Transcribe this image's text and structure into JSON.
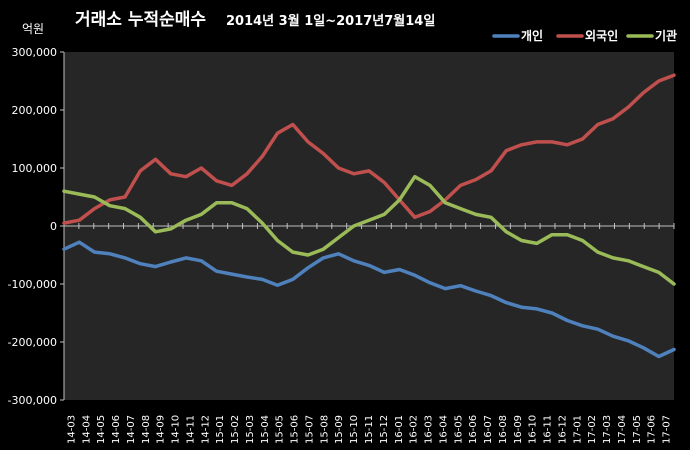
{
  "chart_data": {
    "type": "line",
    "title": "거래소 누적순매수",
    "subtitle": "2014년 3월 1일~2017년7월14일",
    "ylabel": "억원",
    "xlabel": "",
    "ylim": [
      -300000,
      300000
    ],
    "yticks": [
      300000,
      200000,
      100000,
      0,
      -100000,
      -200000,
      -300000
    ],
    "ytick_labels": [
      "300,000",
      "200,000",
      "100,000",
      "0",
      "-100,000",
      "-200,000",
      "-300,000"
    ],
    "categories": [
      "14-03",
      "14-04",
      "14-05",
      "14-06",
      "14-07",
      "14-08",
      "14-09",
      "14-10",
      "14-11",
      "14-12",
      "15-01",
      "15-02",
      "15-03",
      "15-04",
      "15-05",
      "15-06",
      "15-07",
      "15-08",
      "15-09",
      "15-10",
      "15-11",
      "15-12",
      "16-01",
      "16-02",
      "16-03",
      "16-04",
      "16-05",
      "16-06",
      "16-07",
      "16-08",
      "16-09",
      "16-10",
      "16-11",
      "16-12",
      "17-01",
      "17-02",
      "17-03",
      "17-04",
      "17-05",
      "17-06",
      "17-07"
    ],
    "grid": false,
    "legend_position": "top-right",
    "series": [
      {
        "name": "개인",
        "color": "#4f81bd",
        "values": [
          -40000,
          -28000,
          -45000,
          -48000,
          -55000,
          -65000,
          -70000,
          -62000,
          -55000,
          -60000,
          -78000,
          -83000,
          -88000,
          -92000,
          -102000,
          -92000,
          -72000,
          -55000,
          -48000,
          -60000,
          -68000,
          -80000,
          -75000,
          -85000,
          -98000,
          -108000,
          -103000,
          -112000,
          -120000,
          -132000,
          -140000,
          -143000,
          -150000,
          -163000,
          -172000,
          -178000,
          -190000,
          -198000,
          -210000,
          -225000,
          -213000
        ]
      },
      {
        "name": "외국인",
        "color": "#c0504d",
        "values": [
          5000,
          10000,
          30000,
          45000,
          50000,
          95000,
          115000,
          90000,
          85000,
          100000,
          78000,
          70000,
          90000,
          120000,
          160000,
          175000,
          145000,
          125000,
          100000,
          90000,
          95000,
          75000,
          45000,
          15000,
          25000,
          45000,
          70000,
          80000,
          95000,
          130000,
          140000,
          145000,
          145000,
          140000,
          150000,
          175000,
          185000,
          205000,
          230000,
          250000,
          260000
        ]
      },
      {
        "name": "기관",
        "color": "#9bbb59",
        "values": [
          60000,
          55000,
          50000,
          35000,
          30000,
          15000,
          -10000,
          -5000,
          10000,
          20000,
          40000,
          40000,
          30000,
          5000,
          -25000,
          -45000,
          -50000,
          -40000,
          -20000,
          0,
          10000,
          20000,
          45000,
          85000,
          70000,
          40000,
          30000,
          20000,
          15000,
          -10000,
          -25000,
          -30000,
          -15000,
          -15000,
          -25000,
          -45000,
          -55000,
          -60000,
          -70000,
          -80000,
          -100000
        ]
      }
    ]
  }
}
